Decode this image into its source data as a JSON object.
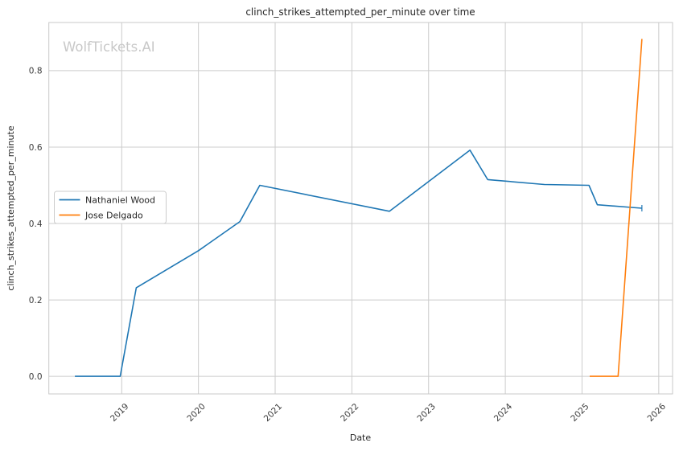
{
  "watermark": {
    "text": "WolfTickets.AI",
    "color": "#c8c8c8"
  },
  "legend": {
    "entries": [
      "Nathaniel Wood",
      "Jose Delgado"
    ],
    "border_color": "#cccccc",
    "background": "#ffffff"
  },
  "colors": {
    "grid": "#cccccc",
    "frame": "#c9c9c9",
    "text": "#262626",
    "series_blue": "#1f77b4",
    "series_orange": "#ff7f0e"
  },
  "chart_data": {
    "type": "line",
    "title": "clinch_strikes_attempted_per_minute over time",
    "xlabel": "Date",
    "ylabel": "clinch_strikes_attempted_per_minute",
    "grid": true,
    "legend_position": "center-left",
    "x_ticks": [
      2019,
      2020,
      2021,
      2022,
      2023,
      2024,
      2025,
      2026
    ],
    "x_tick_labels": [
      "2019",
      "2020",
      "2021",
      "2022",
      "2023",
      "2024",
      "2025",
      "2026"
    ],
    "y_ticks": [
      0.0,
      0.2,
      0.4,
      0.6,
      0.8
    ],
    "y_tick_labels": [
      "0.0",
      "0.2",
      "0.4",
      "0.6",
      "0.8"
    ],
    "xlim": [
      2018.05,
      2026.18
    ],
    "ylim": [
      -0.046,
      0.926
    ],
    "series": [
      {
        "name": "Nathaniel Wood",
        "color": "#1f77b4",
        "end_tick": true,
        "points": [
          [
            2018.39,
            0.0
          ],
          [
            2018.98,
            0.0
          ],
          [
            2019.19,
            0.232
          ],
          [
            2020.0,
            0.329
          ],
          [
            2020.54,
            0.405
          ],
          [
            2020.8,
            0.5
          ],
          [
            2022.49,
            0.432
          ],
          [
            2023.54,
            0.592
          ],
          [
            2023.77,
            0.515
          ],
          [
            2024.51,
            0.502
          ],
          [
            2025.09,
            0.5
          ],
          [
            2025.2,
            0.449
          ],
          [
            2025.78,
            0.44
          ]
        ]
      },
      {
        "name": "Jose Delgado",
        "color": "#ff7f0e",
        "end_tick": false,
        "points": [
          [
            2025.1,
            0.0
          ],
          [
            2025.47,
            0.0
          ],
          [
            2025.78,
            0.883
          ]
        ]
      }
    ]
  }
}
